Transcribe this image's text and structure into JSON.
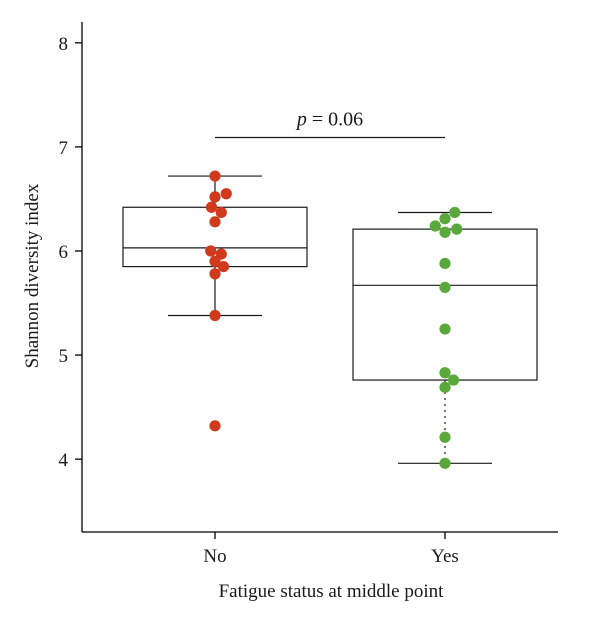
{
  "chart_data": {
    "type": "box",
    "xlabel": "Fatigue status at middle point",
    "ylabel": "Shannon diversity index",
    "ylim": [
      3.3,
      8.2
    ],
    "yticks": [
      4,
      5,
      6,
      7,
      8
    ],
    "categories": [
      "No",
      "Yes"
    ],
    "groups": [
      {
        "category": "No",
        "color": "#d03a1c",
        "box": {
          "q1": 5.85,
          "median": 6.03,
          "q3": 6.42,
          "whisker_low": 5.38,
          "whisker_high": 6.72
        },
        "whisker_style": "solid",
        "points": [
          {
            "dx": 0.0,
            "y": 6.72
          },
          {
            "dx": 0.45,
            "y": 6.55
          },
          {
            "dx": 0.0,
            "y": 6.52
          },
          {
            "dx": -0.14,
            "y": 6.42
          },
          {
            "dx": 0.25,
            "y": 6.37
          },
          {
            "dx": 0.0,
            "y": 6.28
          },
          {
            "dx": -0.17,
            "y": 6.0
          },
          {
            "dx": 0.25,
            "y": 5.97
          },
          {
            "dx": 0.0,
            "y": 5.9
          },
          {
            "dx": 0.34,
            "y": 5.85
          },
          {
            "dx": 0.0,
            "y": 5.78
          },
          {
            "dx": 0.0,
            "y": 5.38
          },
          {
            "dx": 0.0,
            "y": 4.32
          }
        ]
      },
      {
        "category": "Yes",
        "color": "#5aa83a",
        "box": {
          "q1": 4.76,
          "median": 5.67,
          "q3": 6.21,
          "whisker_low": 3.96,
          "whisker_high": 6.37
        },
        "whisker_style": "dotted",
        "points": [
          {
            "dx": 0.39,
            "y": 6.37
          },
          {
            "dx": 0.0,
            "y": 6.31
          },
          {
            "dx": -0.39,
            "y": 6.24
          },
          {
            "dx": 0.47,
            "y": 6.21
          },
          {
            "dx": 0.0,
            "y": 6.18
          },
          {
            "dx": 0.0,
            "y": 5.88
          },
          {
            "dx": 0.0,
            "y": 5.65
          },
          {
            "dx": 0.0,
            "y": 5.25
          },
          {
            "dx": 0.0,
            "y": 4.83
          },
          {
            "dx": 0.34,
            "y": 4.76
          },
          {
            "dx": 0.0,
            "y": 4.69
          },
          {
            "dx": 0.0,
            "y": 4.21
          },
          {
            "dx": 0.0,
            "y": 3.96
          }
        ]
      }
    ],
    "annotation": {
      "text_italic": "p",
      "text_rest": " = 0.06",
      "y": 7.09
    }
  }
}
